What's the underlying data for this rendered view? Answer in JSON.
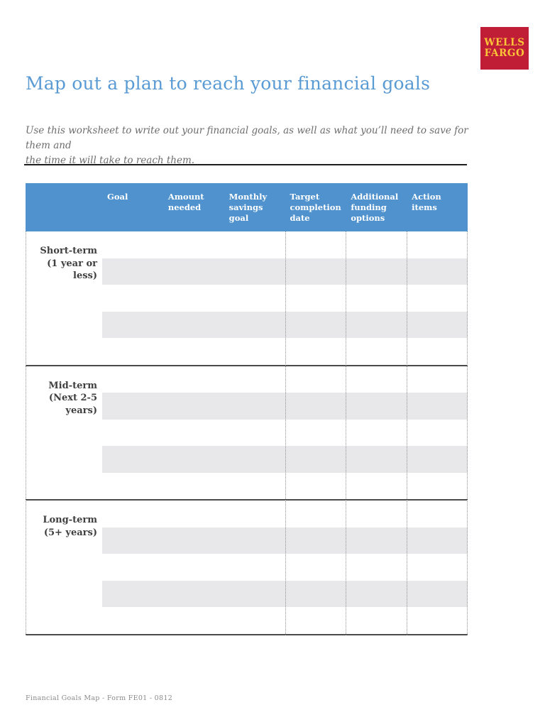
{
  "logo": {
    "line1": "WELLS",
    "line2": "FARGO"
  },
  "title": "Map out a plan to reach your financial goals",
  "intro": {
    "line1": "Use this worksheet to write out your financial goals, as well as what you’ll need to save for them and",
    "line2": "the time it will take to reach them."
  },
  "table": {
    "columns": [
      "Goal",
      "Amount needed",
      "Monthly savings goal",
      "Target completion date",
      "Additional funding options",
      "Action items"
    ],
    "sections": [
      {
        "id": "short-term",
        "label_line1": "Short-term",
        "label_line2": "(1 year or less)",
        "blank_rows": 5
      },
      {
        "id": "mid-term",
        "label_line1": "Mid-term",
        "label_line2": "(Next 2-5 years)",
        "blank_rows": 5
      },
      {
        "id": "long-term",
        "label_line1": "Long-term",
        "label_line2": "(5+ years)",
        "blank_rows": 5
      }
    ]
  },
  "footer": "Financial Goals Map - Form FE01 - 0812",
  "colors": {
    "header_blue": "#4f92ce",
    "title_blue": "#5b9bd4",
    "logo_red": "#c01d36",
    "logo_yellow": "#fcc438",
    "stripe_gray": "#e8e8ea"
  }
}
